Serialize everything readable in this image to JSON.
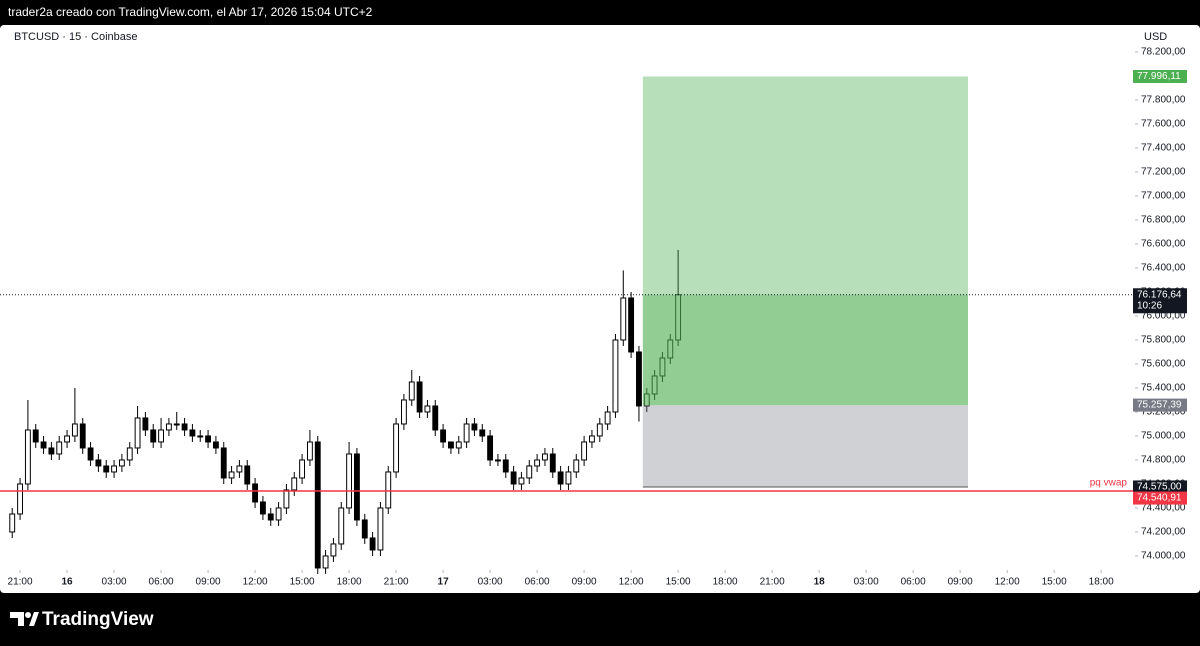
{
  "header": {
    "text": "trader2a creado con TradingView.com, el Abr 17, 2026 15:04 UTC+2"
  },
  "footer": {
    "logo_text": "TradingView"
  },
  "chart_data": {
    "type": "candlestick",
    "title": "BTCUSD · 15 · Coinbase",
    "y_axis_label": "USD",
    "up_color": "#ffffff",
    "down_color": "#000000",
    "wick_color": "#000000",
    "x": [
      -0.5,
      0,
      0.5,
      1,
      1.5,
      2,
      2.5,
      3,
      3.5,
      4,
      4.5,
      5,
      5.5,
      6,
      6.5,
      7,
      7.5,
      8,
      8.5,
      9,
      9.5,
      10,
      10.5,
      11,
      11.5,
      12,
      12.5,
      13,
      13.5,
      14,
      14.5,
      15,
      15.5,
      16,
      16.5,
      17,
      17.5,
      18,
      18.5,
      19,
      19.5,
      20,
      20.5,
      21,
      21.5,
      22,
      22.5,
      23,
      23.5,
      24,
      24.5,
      25,
      25.5,
      26,
      26.5,
      27,
      27.5,
      28,
      28.5,
      29,
      29.5,
      30,
      30.5,
      31,
      31.5,
      32,
      32.5,
      33,
      33.5,
      34,
      34.5,
      35,
      35.5,
      36,
      36.5,
      37,
      37.5,
      38,
      38.5,
      39,
      39.5,
      40,
      40.5,
      41,
      41.5,
      42
    ],
    "open": [
      74200,
      74350,
      74600,
      75050,
      74950,
      74900,
      74850,
      74950,
      75000,
      75100,
      74900,
      74800,
      74750,
      74700,
      74750,
      74800,
      74900,
      75150,
      75050,
      74950,
      75050,
      75100,
      75100,
      75050,
      75000,
      75000,
      74950,
      74900,
      74650,
      74700,
      74750,
      74600,
      74450,
      74350,
      74300,
      74400,
      74550,
      74650,
      74800,
      74950,
      73900,
      74000,
      74100,
      74400,
      74850,
      74300,
      74150,
      74050,
      74400,
      74700,
      75100,
      75300,
      75450,
      75200,
      75250,
      75050,
      74950,
      74900,
      74950,
      75100,
      75050,
      75000,
      74800,
      74800,
      74700,
      74600,
      74650,
      74750,
      74800,
      74850,
      74700,
      74600,
      74700,
      74800,
      74950,
      75000,
      75100,
      75200,
      75800,
      76150,
      75700,
      75250,
      75350,
      75500,
      75650,
      75800
    ],
    "high": [
      74400,
      74650,
      75300,
      75100,
      75000,
      74950,
      75000,
      75050,
      75400,
      75150,
      74950,
      74850,
      74800,
      74800,
      74850,
      74950,
      75250,
      75200,
      75100,
      75150,
      75150,
      75200,
      75150,
      75100,
      75050,
      75050,
      75000,
      74950,
      74750,
      74800,
      74800,
      74650,
      74500,
      74400,
      74450,
      74600,
      74700,
      74850,
      75050,
      75000,
      74050,
      74150,
      74450,
      74950,
      74900,
      74350,
      74200,
      74450,
      74750,
      75150,
      75350,
      75550,
      75500,
      75300,
      75300,
      75100,
      74950,
      75000,
      75150,
      75150,
      75100,
      75050,
      74850,
      74850,
      74750,
      74700,
      74800,
      74850,
      74900,
      74900,
      74750,
      74750,
      74850,
      75000,
      75050,
      75150,
      75250,
      75850,
      76380,
      76200,
      75750,
      75400,
      75550,
      75700,
      75850,
      76550
    ],
    "low": [
      74150,
      74300,
      74550,
      74900,
      74850,
      74800,
      74800,
      74900,
      74950,
      74850,
      74750,
      74700,
      74650,
      74650,
      74700,
      74750,
      74850,
      75000,
      74900,
      74900,
      75000,
      75050,
      75000,
      74950,
      74950,
      74900,
      74850,
      74600,
      74600,
      74650,
      74550,
      74400,
      74300,
      74250,
      74250,
      74350,
      74500,
      74600,
      74750,
      73850,
      73850,
      73950,
      74050,
      74350,
      74250,
      74100,
      74000,
      74000,
      74350,
      74650,
      75050,
      75250,
      75150,
      75150,
      75000,
      74900,
      74850,
      74850,
      74900,
      75000,
      74950,
      74750,
      74750,
      74650,
      74550,
      74550,
      74600,
      74700,
      74750,
      74650,
      74550,
      74550,
      74650,
      74750,
      74900,
      74950,
      75050,
      75150,
      75750,
      75650,
      75120,
      75200,
      75300,
      75450,
      75600,
      75750
    ],
    "close": [
      74350,
      74600,
      75050,
      74950,
      74900,
      74850,
      74950,
      75000,
      75100,
      74900,
      74800,
      74750,
      74700,
      74750,
      74800,
      74900,
      75150,
      75050,
      74950,
      75050,
      75100,
      75100,
      75050,
      75000,
      75000,
      74950,
      74900,
      74650,
      74700,
      74750,
      74600,
      74450,
      74350,
      74300,
      74400,
      74550,
      74650,
      74800,
      74950,
      73900,
      74000,
      74100,
      74400,
      74850,
      74300,
      74150,
      74050,
      74400,
      74700,
      75100,
      75300,
      75450,
      75200,
      75250,
      75050,
      74950,
      74900,
      74950,
      75100,
      75050,
      75000,
      74800,
      74800,
      74700,
      74600,
      74650,
      74750,
      74800,
      74850,
      74700,
      74600,
      74700,
      74800,
      74950,
      75000,
      75100,
      75200,
      75800,
      76150,
      75700,
      75250,
      75350,
      75500,
      75650,
      75800,
      76176.64
    ],
    "xlim": [
      -1.28,
      71.16
    ],
    "ylim": [
      73883,
      78425
    ],
    "xticks": [
      {
        "value": 0,
        "label": "21:00"
      },
      {
        "value": 3,
        "label": "16"
      },
      {
        "value": 6,
        "label": "03:00"
      },
      {
        "value": 9,
        "label": "06:00"
      },
      {
        "value": 12,
        "label": "09:00"
      },
      {
        "value": 15,
        "label": "12:00"
      },
      {
        "value": 18,
        "label": "15:00"
      },
      {
        "value": 21,
        "label": "18:00"
      },
      {
        "value": 24,
        "label": "21:00"
      },
      {
        "value": 27,
        "label": "17"
      },
      {
        "value": 30,
        "label": "03:00"
      },
      {
        "value": 33,
        "label": "06:00"
      },
      {
        "value": 36,
        "label": "09:00"
      },
      {
        "value": 39,
        "label": "12:00"
      },
      {
        "value": 42,
        "label": "15:00"
      },
      {
        "value": 45,
        "label": "18:00"
      },
      {
        "value": 48,
        "label": "21:00"
      },
      {
        "value": 51,
        "label": "18"
      },
      {
        "value": 54,
        "label": "03:00"
      },
      {
        "value": 57,
        "label": "06:00"
      },
      {
        "value": 60,
        "label": "09:00"
      },
      {
        "value": 63,
        "label": "12:00"
      },
      {
        "value": 66,
        "label": "15:00"
      },
      {
        "value": 69,
        "label": "18:00"
      }
    ],
    "yticks": [
      {
        "value": 74000,
        "label": "74.000,00"
      },
      {
        "value": 74200,
        "label": "74.200,00"
      },
      {
        "value": 74400,
        "label": "74.400,00"
      },
      {
        "value": 74600,
        "label": "74.600,00"
      },
      {
        "value": 74800,
        "label": "74.800,00"
      },
      {
        "value": 75000,
        "label": "75.000,00"
      },
      {
        "value": 75200,
        "label": "75.200,00"
      },
      {
        "value": 75400,
        "label": "75.400,00"
      },
      {
        "value": 75600,
        "label": "75.600,00"
      },
      {
        "value": 75800,
        "label": "75.800,00"
      },
      {
        "value": 76000,
        "label": "76.000,00"
      },
      {
        "value": 76200,
        "label": "76.200,00"
      },
      {
        "value": 76400,
        "label": "76.400,00"
      },
      {
        "value": 76600,
        "label": "76.600,00"
      },
      {
        "value": 76800,
        "label": "76.800,00"
      },
      {
        "value": 77000,
        "label": "77.000,00"
      },
      {
        "value": 77200,
        "label": "77.200,00"
      },
      {
        "value": 77400,
        "label": "77.400,00"
      },
      {
        "value": 77600,
        "label": "77.600,00"
      },
      {
        "value": 77800,
        "label": "77.800,00"
      },
      {
        "value": 78000,
        "label": "78.000,00"
      },
      {
        "value": 78200,
        "label": "78.200,00"
      }
    ],
    "last_price": {
      "value": 76176.64,
      "label": "76.176,64",
      "countdown": "10:26"
    },
    "lines": [
      {
        "name": "pq vwap",
        "value": 74540.91,
        "label": "74.540,91",
        "color": "#f23645"
      }
    ],
    "position": {
      "x": [
        39.75,
        60.5
      ],
      "target": {
        "value": 77996.11,
        "label": "77.996,11"
      },
      "entry": {
        "value": 75257.39,
        "label": "75.257,39"
      },
      "stop": {
        "value": 74575.0,
        "label": "74.575,00"
      },
      "profit_color": "#4caf50",
      "loss_color": "#787b86"
    }
  }
}
